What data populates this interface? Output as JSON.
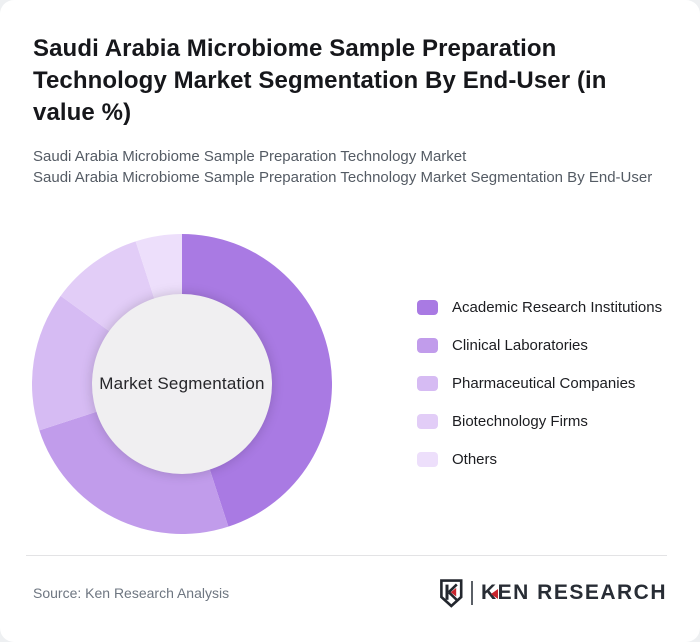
{
  "header": {
    "title": "Saudi Arabia Microbiome Sample Preparation Technology Market Segmentation By End-User (in value %)",
    "subtitle_lines": [
      "Saudi Arabia Microbiome Sample Preparation Technology Market",
      "Saudi Arabia Microbiome Sample Preparation Technology Market Segmentation By End-User"
    ]
  },
  "chart_data": {
    "type": "pie",
    "subtype": "donut",
    "title": "Saudi Arabia Microbiome Sample Preparation Technology Market Segmentation By End-User (in value %)",
    "center_label": "Market Segmentation",
    "unit": "value %",
    "start_angle_deg": 0,
    "direction": "clockwise",
    "legend_position": "right",
    "hole_color": "#f0eff1",
    "series": [
      {
        "label": "Academic Research Institutions",
        "value": 45,
        "color": "#a97ae3"
      },
      {
        "label": "Clinical Laboratories",
        "value": 25,
        "color": "#c19ceb"
      },
      {
        "label": "Pharmaceutical Companies",
        "value": 15,
        "color": "#d6bbf3"
      },
      {
        "label": "Biotechnology Firms",
        "value": 10,
        "color": "#e2cdf7"
      },
      {
        "label": "Others",
        "value": 5,
        "color": "#eddffb"
      }
    ]
  },
  "footer": {
    "source": "Source: Ken Research Analysis",
    "logo_k": "K",
    "logo_rest": "EN RESEARCH",
    "logo_accent": "#c8242c"
  }
}
